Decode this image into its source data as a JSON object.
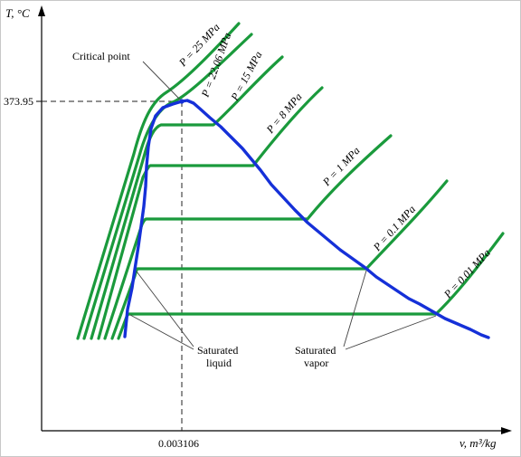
{
  "axes": {
    "y_label": "T, °C",
    "x_label": "v, m³/kg",
    "y_tick_label": "373.95",
    "x_tick_label": "0.003106"
  },
  "annotations": {
    "critical_point": "Critical point",
    "saturated_liquid_line1": "Saturated",
    "saturated_liquid_line2": "liquid",
    "saturated_vapor_line1": "Saturated",
    "saturated_vapor_line2": "vapor"
  },
  "isobars": [
    {
      "label": "P = 25 MPa"
    },
    {
      "label": "P = 22.06 MPa"
    },
    {
      "label": "P = 15 MPa"
    },
    {
      "label": "P = 8 MPa"
    },
    {
      "label": "P = 1 MPa"
    },
    {
      "label": "P = 0.1 MPa"
    },
    {
      "label": "P = 0.01 MPa"
    }
  ],
  "colors": {
    "isobar": "#1a9a3c",
    "saturation_dome": "#1530d8",
    "axis": "#000000"
  }
}
